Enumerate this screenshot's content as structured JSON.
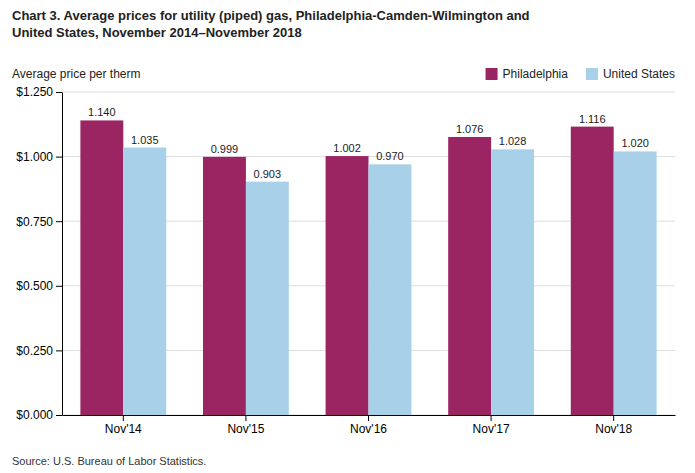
{
  "chart_data": {
    "type": "bar",
    "title": "Chart 3. Average prices for utility (piped) gas, Philadelphia-Camden-Wilmington and\nUnited States, November 2014–November 2018",
    "y_label": "Average price per therm",
    "annotations": [
      "Source: U.S. Bureau of Labor Statistics."
    ],
    "categories": [
      "Nov'14",
      "Nov'15",
      "Nov'16",
      "Nov'17",
      "Nov'18"
    ],
    "series": [
      {
        "name": "Philadelphia",
        "color": "#9B2463",
        "values": [
          1.14,
          0.999,
          1.002,
          1.076,
          1.116
        ],
        "value_labels": [
          "1.140",
          "0.999",
          "1.002",
          "1.076",
          "1.116"
        ]
      },
      {
        "name": "United States",
        "color": "#A8D0E8",
        "values": [
          1.035,
          0.903,
          0.97,
          1.028,
          1.02
        ],
        "value_labels": [
          "1.035",
          "0.903",
          "0.970",
          "1.028",
          "1.020"
        ]
      }
    ],
    "ylim": [
      0,
      1.25
    ],
    "yticks": [
      {
        "value": 0.0,
        "label": "$0.000"
      },
      {
        "value": 0.25,
        "label": "$0.250"
      },
      {
        "value": 0.5,
        "label": "$0.500"
      },
      {
        "value": 0.75,
        "label": "$0.750"
      },
      {
        "value": 1.0,
        "label": "$1.000"
      },
      {
        "value": 1.25,
        "label": "$1.250"
      }
    ],
    "grid": true,
    "legend": "top",
    "data_labels": true
  }
}
